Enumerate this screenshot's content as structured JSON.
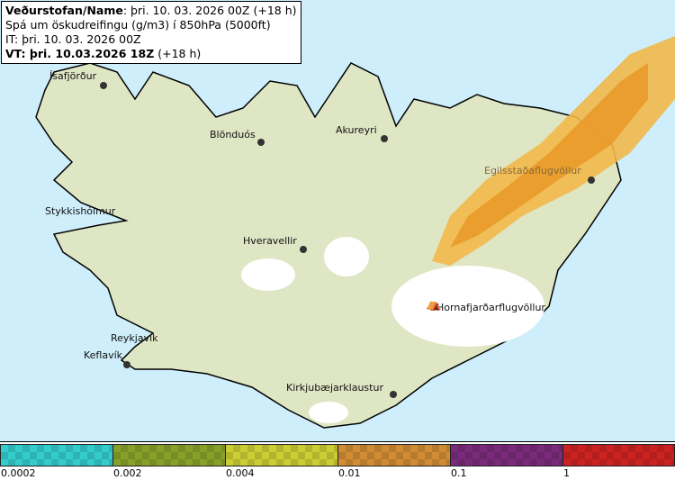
{
  "header": {
    "line1_bold": "Veðurstofan/Name",
    "line1_rest": ": þri. 10. 03. 2026 00Z (+18 h)",
    "line2": "Spá um öskudreifingu (g/m3) í 850hPa (5000ft)",
    "line3": "IT: þri. 10. 03. 2026 00Z",
    "line4_bold": "VT: þri. 10.03.2026 18Z",
    "line4_rest": " (+18 h)"
  },
  "towns": [
    {
      "name": "Ísafjörður"
    },
    {
      "name": "Blönduós"
    },
    {
      "name": "Akureyri"
    },
    {
      "name": "Egilsstaðaflugvöllur"
    },
    {
      "name": "Stykkishólmur"
    },
    {
      "name": "Hveravellir"
    },
    {
      "name": "Hornafjarðarflugvöllur"
    },
    {
      "name": "Reykjavík"
    },
    {
      "name": "Keflavík"
    },
    {
      "name": "Kirkjubæjarklaustur"
    }
  ],
  "legend": {
    "labels": [
      "0.0002",
      "0.002",
      "0.004",
      "0.01",
      "0.1",
      "1"
    ],
    "colors": [
      "#33cccc",
      "#88a02a",
      "#cccc33",
      "#d08c33",
      "#7a2a7a",
      "#cc2222"
    ]
  },
  "colors": {
    "sea": "#cdeefa",
    "land": "#dfe8c8",
    "glacier": "#ffffff",
    "ash_low": "#f2b84a",
    "ash_mid": "#e89a2a"
  }
}
